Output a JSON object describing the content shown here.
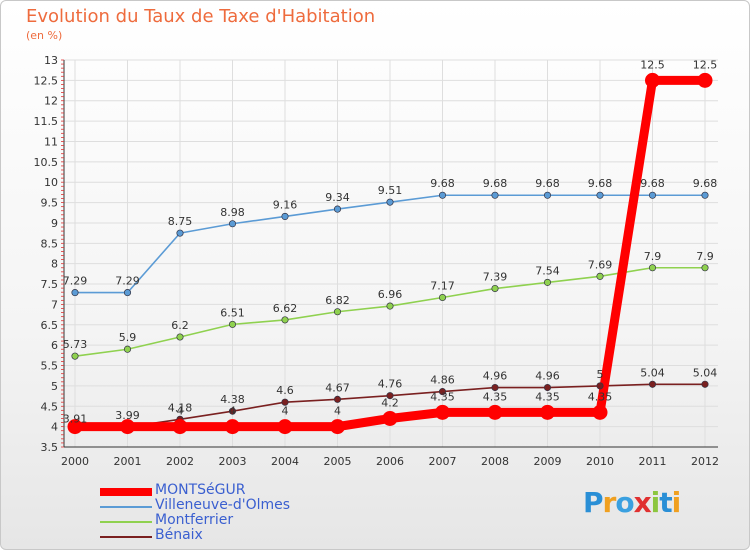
{
  "header": {
    "title": "Evolution du Taux de Taxe d'Habitation",
    "unit": "(en %)"
  },
  "logo": {
    "text": "Proxiti",
    "letters": [
      {
        "ch": "P",
        "color": "#2a8fd6"
      },
      {
        "ch": "r",
        "color": "#f0a020"
      },
      {
        "ch": "o",
        "color": "#3aa0e0"
      },
      {
        "ch": "x",
        "color": "#e03030"
      },
      {
        "ch": "i",
        "color": "#8cc63f"
      },
      {
        "ch": "t",
        "color": "#2a8fd6"
      },
      {
        "ch": "i",
        "color": "#f0a020"
      }
    ]
  },
  "chart_data": {
    "type": "line",
    "x": [
      "2000",
      "2001",
      "2002",
      "2003",
      "2004",
      "2005",
      "2006",
      "2007",
      "2008",
      "2009",
      "2010",
      "2011",
      "2012"
    ],
    "ylim": [
      3.5,
      13
    ],
    "ystep": 0.5,
    "yticks": [
      "3.5",
      "4",
      "4.5",
      "5",
      "5.5",
      "6",
      "6.5",
      "7",
      "7.5",
      "8",
      "8.5",
      "9",
      "9.5",
      "10",
      "10.5",
      "11",
      "11.5",
      "12",
      "12.5",
      "13"
    ],
    "grid": true,
    "legend_position": "bottom-left",
    "series": [
      {
        "name": "MONTSéGUR",
        "color": "#ff0000",
        "values": [
          4,
          4,
          4,
          4,
          4,
          4,
          4.2,
          4.35,
          4.35,
          4.35,
          4.35,
          12.5,
          12.5
        ],
        "labels": [
          "",
          "",
          "4",
          "4",
          "4",
          "4",
          "4.2",
          "4.35",
          "4.35",
          "4.35",
          "4.35",
          "12.5",
          "12.5"
        ]
      },
      {
        "name": "Villeneuve-d'Olmes",
        "color": "#5b9bd5",
        "values": [
          7.29,
          7.29,
          8.75,
          8.98,
          9.16,
          9.34,
          9.51,
          9.68,
          9.68,
          9.68,
          9.68,
          9.68,
          9.68
        ],
        "labels": [
          "7.29",
          "7.29",
          "8.75",
          "8.98",
          "9.16",
          "9.34",
          "9.51",
          "9.68",
          "9.68",
          "9.68",
          "9.68",
          "9.68",
          "9.68"
        ]
      },
      {
        "name": "Montferrier",
        "color": "#8fd14f",
        "values": [
          5.73,
          5.9,
          6.2,
          6.51,
          6.62,
          6.82,
          6.96,
          7.17,
          7.39,
          7.54,
          7.69,
          7.9,
          7.9
        ],
        "labels": [
          "5.73",
          "5.9",
          "6.2",
          "6.51",
          "6.62",
          "6.82",
          "6.96",
          "7.17",
          "7.39",
          "7.54",
          "7.69",
          "7.9",
          "7.9"
        ]
      },
      {
        "name": "Bénaix",
        "color": "#7a2020",
        "values": [
          3.91,
          3.99,
          4.18,
          4.38,
          4.6,
          4.67,
          4.76,
          4.86,
          4.96,
          4.96,
          5,
          5.04,
          5.04
        ],
        "labels": [
          "3.91",
          "3.99",
          "4.18",
          "4.38",
          "4.6",
          "4.67",
          "4.76",
          "4.86",
          "4.96",
          "4.96",
          "5",
          "5.04",
          "5.04"
        ]
      }
    ]
  }
}
